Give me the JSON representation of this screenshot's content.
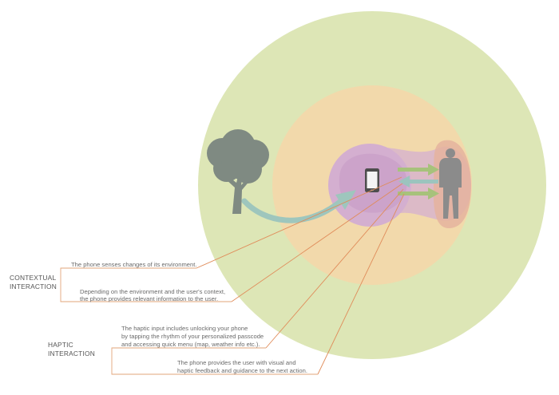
{
  "colors": {
    "outer_circle": "#dde6b6",
    "middle_circle": "#f2d9ab",
    "inner_circle": "#d4afd0",
    "inner_core": "#c9a0c8",
    "user_zone": "#e5b39e",
    "tree": "#7f8a82",
    "person": "#8b8b8b",
    "arrow_green": "#a7c27b",
    "arrow_teal": "#9cc4be",
    "curve_arrow": "#9ec6bd",
    "leader_line": "#e08c5a",
    "bracket": "#e2a57a"
  },
  "icons": {
    "tree": "tree-icon",
    "phone": "smartphone-icon",
    "person": "person-icon"
  },
  "groups": {
    "contextual": {
      "label_line1": "CONTEXTUAL",
      "label_line2": "INTERACTION",
      "items": [
        {
          "line1": "The phone senses changes of its environment."
        },
        {
          "line1": "Depending on the environment and the user's context,",
          "line2": "the phone provides relevant information to the user."
        }
      ]
    },
    "haptic": {
      "label_line1": "HAPTIC",
      "label_line2": "INTERACTION",
      "items": [
        {
          "line1": "The haptic input includes unlocking your phone",
          "line2": "by tapping the rhythm of your personalized passcode",
          "line3": "and accessing quick menu (map, weather info etc.)."
        },
        {
          "line1": "The phone provides the user with visual and",
          "line2": "haptic feedback and guidance to the next action."
        }
      ]
    }
  }
}
